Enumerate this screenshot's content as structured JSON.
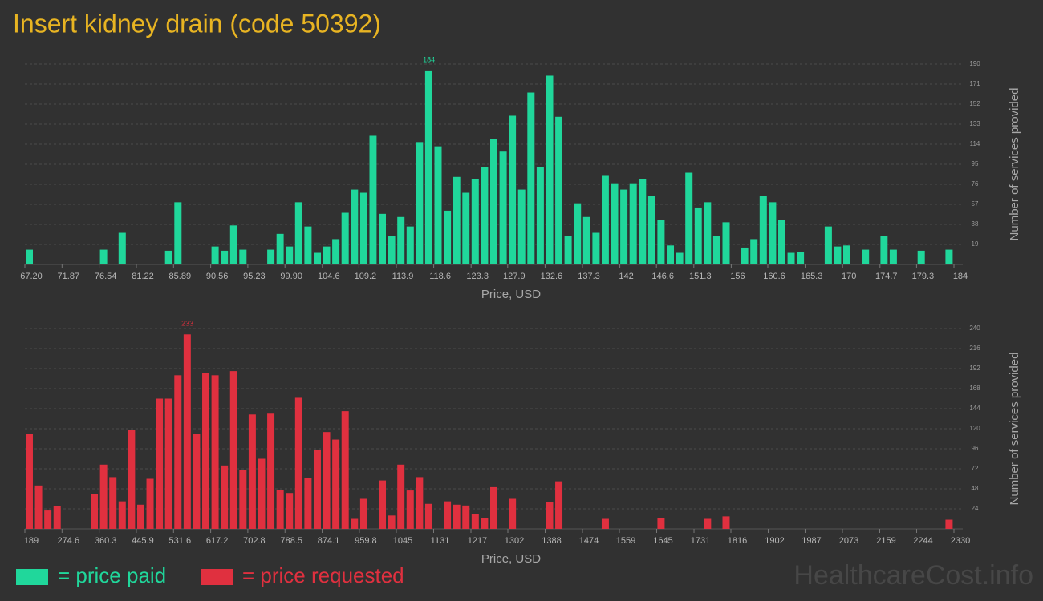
{
  "title": "Insert kidney drain (code 50392)",
  "watermark": "HealthcareCost.info",
  "chart_data": [
    {
      "type": "histogram",
      "xlabel": "Price, USD",
      "ylabel": "Number of services provided",
      "grid": true,
      "xlim": [
        67.2,
        184
      ],
      "ylim": [
        0,
        190
      ],
      "yticks": [
        19,
        38,
        57,
        76,
        95,
        114,
        133,
        152,
        171,
        190
      ],
      "xticks": [
        {
          "value": 67.2,
          "label": "67.20"
        },
        71.87,
        76.54,
        81.22,
        85.89,
        90.56,
        95.23,
        {
          "value": 99.9,
          "label": "99.90"
        },
        104.6,
        109.2,
        113.9,
        118.6,
        123.3,
        127.9,
        132.6,
        137.3,
        142,
        146.6,
        151.3,
        156,
        160.6,
        165.3,
        170,
        174.7,
        179.3,
        184
      ],
      "bins": [
        67.2,
        68.37,
        69.54,
        70.7,
        71.87,
        73.04,
        74.21,
        75.38,
        76.54,
        77.71,
        78.88,
        80.05,
        81.22,
        82.38,
        83.55,
        84.72,
        85.89,
        87.06,
        88.22,
        89.39,
        90.56,
        91.73,
        92.9,
        94.06,
        95.23,
        96.4,
        97.57,
        98.74,
        99.9,
        101.07,
        102.24,
        103.41,
        104.58,
        105.74,
        106.91,
        108.08,
        109.25,
        110.42,
        111.58,
        112.75,
        113.92,
        115.09,
        116.26,
        117.42,
        118.59,
        119.76,
        120.93,
        122.1,
        123.26,
        124.43,
        125.6,
        126.77,
        127.94,
        129.1,
        130.27,
        131.44,
        132.61,
        133.78,
        134.94,
        136.11,
        137.28,
        138.45,
        139.62,
        140.78,
        141.95,
        143.12,
        144.29,
        145.46,
        146.62,
        147.79,
        148.96,
        150.13,
        151.3,
        152.46,
        153.63,
        154.8,
        155.97,
        157.14,
        158.3,
        159.47,
        160.64,
        161.81,
        162.98,
        164.14,
        165.31,
        166.48,
        167.65,
        168.82,
        169.98,
        171.15,
        172.32,
        173.49,
        174.66,
        175.82,
        176.99,
        178.16,
        179.33,
        180.5,
        181.66,
        182.83,
        184
      ],
      "series": [
        {
          "name": "= price paid",
          "color": "#20d79b",
          "values": [
            14,
            0,
            0,
            0,
            0,
            0,
            0,
            0,
            14,
            0,
            30,
            0,
            0,
            0,
            0,
            13,
            59,
            0,
            0,
            0,
            17,
            13,
            37,
            14,
            0,
            0,
            14,
            29,
            17,
            59,
            36,
            11,
            17,
            24,
            49,
            71,
            68,
            122,
            48,
            27,
            45,
            36,
            116,
            184,
            112,
            51,
            83,
            68,
            81,
            92,
            119,
            107,
            141,
            71,
            163,
            92,
            179,
            140,
            27,
            58,
            45,
            30,
            84,
            77,
            71,
            77,
            81,
            65,
            42,
            18,
            11,
            87,
            54,
            59,
            27,
            40,
            0,
            16,
            24,
            65,
            59,
            42,
            11,
            12,
            0,
            0,
            36,
            17,
            18,
            0,
            14,
            0,
            27,
            14,
            0,
            0,
            13,
            0,
            0,
            14
          ]
        }
      ]
    },
    {
      "type": "histogram",
      "xlabel": "Price, USD",
      "ylabel": "Number of services provided",
      "grid": true,
      "xlim": [
        189,
        2330
      ],
      "ylim": [
        0,
        240
      ],
      "yticks": [
        24,
        48,
        72,
        96,
        120,
        144,
        168,
        192,
        216,
        240
      ],
      "xticks": [
        189,
        274.6,
        360.3,
        445.9,
        531.6,
        617.2,
        702.8,
        788.5,
        874.1,
        959.8,
        1045,
        1131,
        1217,
        1302,
        1388,
        1474,
        1559,
        1645,
        1731,
        1816,
        1902,
        1987,
        2073,
        2159,
        2244,
        2330
      ],
      "bins": [
        189,
        210.41,
        231.82,
        253.23,
        274.64,
        296.05,
        317.46,
        338.87,
        360.28,
        381.69,
        403.1,
        424.51,
        445.92,
        467.33,
        488.74,
        510.15,
        531.56,
        552.97,
        574.38,
        595.79,
        617.2,
        638.61,
        660.02,
        681.43,
        702.84,
        724.25,
        745.66,
        767.07,
        788.48,
        809.89,
        831.3,
        852.71,
        874.12,
        895.53,
        916.94,
        938.35,
        959.76,
        981.17,
        1002.58,
        1023.99,
        1045.4,
        1066.81,
        1088.22,
        1109.63,
        1131.04,
        1152.45,
        1173.86,
        1195.27,
        1216.68,
        1238.09,
        1259.5,
        1280.91,
        1302.32,
        1323.73,
        1345.14,
        1366.55,
        1387.96,
        1409.37,
        1430.78,
        1452.19,
        1473.6,
        1495.01,
        1516.42,
        1537.83,
        1559.24,
        1580.65,
        1602.06,
        1623.47,
        1644.88,
        1666.29,
        1687.7,
        1709.11,
        1730.52,
        1751.93,
        1773.34,
        1794.75,
        1816.16,
        1837.57,
        1858.98,
        1880.39,
        1901.8,
        1923.21,
        1944.62,
        1966.03,
        1987.44,
        2008.85,
        2030.26,
        2051.67,
        2073.08,
        2094.49,
        2115.9,
        2137.31,
        2158.72,
        2180.13,
        2201.54,
        2222.95,
        2244.36,
        2265.77,
        2287.18,
        2308.59,
        2330
      ],
      "series": [
        {
          "name": "= price requested",
          "color": "#e0303f",
          "values": [
            114,
            52,
            22,
            27,
            0,
            0,
            0,
            42,
            77,
            62,
            33,
            119,
            29,
            60,
            156,
            156,
            184,
            233,
            114,
            187,
            184,
            76,
            189,
            71,
            137,
            84,
            138,
            47,
            43,
            157,
            61,
            95,
            116,
            107,
            141,
            12,
            36,
            0,
            58,
            16,
            77,
            46,
            62,
            30,
            0,
            33,
            29,
            28,
            18,
            13,
            50,
            0,
            36,
            0,
            0,
            0,
            32,
            57,
            0,
            0,
            0,
            0,
            12,
            0,
            0,
            0,
            0,
            0,
            13,
            0,
            0,
            0,
            0,
            12,
            0,
            15,
            0,
            0,
            0,
            0,
            0,
            0,
            0,
            0,
            0,
            0,
            0,
            0,
            0,
            0,
            0,
            0,
            0,
            0,
            0,
            0,
            0,
            0,
            0,
            11
          ]
        }
      ]
    }
  ]
}
